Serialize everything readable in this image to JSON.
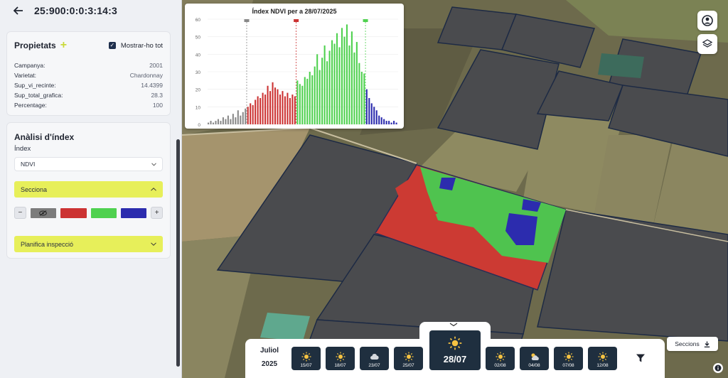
{
  "header": {
    "title": "25:900:0:0:3:14:3"
  },
  "properties": {
    "title": "Propietats",
    "show_all_label": "Mostrar-ho tot",
    "rows": [
      {
        "key": "Campanya:",
        "value": "2001"
      },
      {
        "key": "Varietat:",
        "value": "Chardonnay"
      },
      {
        "key": "Sup_vi_recinte:",
        "value": "14.4399"
      },
      {
        "key": "Sup_total_grafica:",
        "value": "28.3"
      },
      {
        "key": "Percentage:",
        "value": "100"
      }
    ]
  },
  "index_analysis": {
    "title": "Anàlisi d'índex",
    "index_label": "Índex",
    "index_value": "NDVI",
    "section_label": "Secciona",
    "plan_label": "Planifica inspecció",
    "colors": {
      "gray": "#7c7c7c",
      "red": "#cc3333",
      "green": "#4fd14f",
      "blue": "#2c2cae"
    }
  },
  "chart_data": {
    "type": "bar",
    "title": "Índex NDVI per a 28/07/2025",
    "ylim": [
      0,
      60
    ],
    "yticks": [
      0,
      10,
      20,
      30,
      40,
      50,
      60
    ],
    "series": [
      {
        "color": "#8a8a8a",
        "values": [
          1,
          2,
          1,
          2,
          3,
          2,
          4,
          3,
          5,
          3,
          6,
          4,
          8,
          5,
          7,
          9
        ]
      },
      {
        "color": "#cc3333",
        "values": [
          10,
          12,
          11,
          14,
          16,
          15,
          18,
          17,
          22,
          19,
          24,
          21,
          20,
          17,
          19,
          16,
          18,
          15,
          17,
          16
        ]
      },
      {
        "color": "#4fd14f",
        "values": [
          25,
          23,
          22,
          27,
          26,
          30,
          28,
          33,
          40,
          31,
          38,
          45,
          36,
          42,
          48,
          46,
          52,
          44,
          55,
          50,
          57,
          45,
          53,
          41,
          47,
          35,
          30,
          29
        ]
      },
      {
        "color": "#2c2cae",
        "values": [
          20,
          15,
          12,
          10,
          8,
          5,
          4,
          3,
          2,
          2,
          1,
          2,
          1
        ]
      }
    ],
    "markers": [
      {
        "color": "#888888"
      },
      {
        "color": "#cc3333"
      },
      {
        "color": "#4fd14f"
      }
    ]
  },
  "datebar": {
    "month": "Juliol",
    "year": "2025",
    "days": [
      {
        "label": "15/07",
        "icon": "sun-icon"
      },
      {
        "label": "18/07",
        "icon": "sun-icon"
      },
      {
        "label": "23/07",
        "icon": "cloud-icon"
      },
      {
        "label": "25/07",
        "icon": "sun-icon"
      },
      {
        "label": "02/08",
        "icon": "sun-icon"
      },
      {
        "label": "04/08",
        "icon": "partly-cloudy-icon"
      },
      {
        "label": "07/08",
        "icon": "sun-icon"
      },
      {
        "label": "12/08",
        "icon": "sun-icon"
      }
    ],
    "selected": {
      "label": "28/07",
      "icon": "sun-icon"
    },
    "sections_label": "Seccions"
  }
}
